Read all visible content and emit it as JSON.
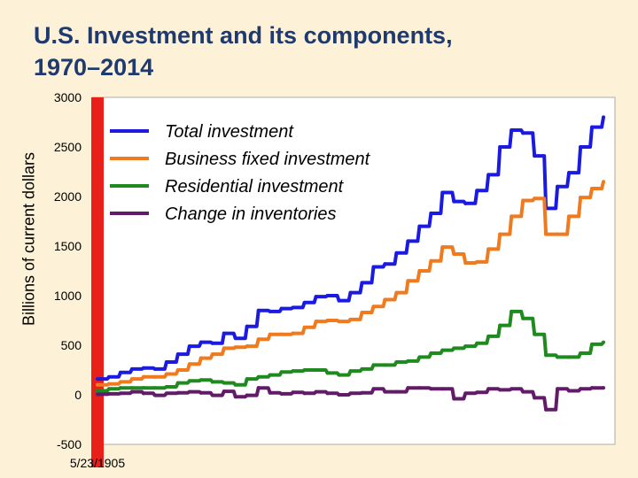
{
  "chart_data": {
    "type": "line",
    "title": "U.S. Investment and its components,",
    "subtitle": "1970–2014",
    "ylabel": "Billions of current dollars",
    "xlabel": "",
    "x_tick_labels": [
      "5/23/1905"
    ],
    "y_ticks": [
      -500,
      0,
      500,
      1000,
      1500,
      2000,
      2500,
      3000
    ],
    "ylim": [
      -500,
      3000
    ],
    "xlim": [
      1970,
      2015
    ],
    "legend_position": "top-right",
    "highlight_bar": {
      "at": 1970,
      "color": "#e8201a"
    },
    "series": [
      {
        "name": "Total investment",
        "color": "#1a1ae0",
        "x": [
          1970,
          1971,
          1972,
          1973,
          1974,
          1975,
          1976,
          1977,
          1978,
          1979,
          1980,
          1981,
          1982,
          1983,
          1984,
          1985,
          1986,
          1987,
          1988,
          1989,
          1990,
          1991,
          1992,
          1993,
          1994,
          1995,
          1996,
          1997,
          1998,
          1999,
          2000,
          2001,
          2002,
          2003,
          2004,
          2005,
          2006,
          2007,
          2008,
          2009,
          2010,
          2011,
          2012,
          2013,
          2014
        ],
        "values": [
          160,
          180,
          225,
          260,
          270,
          260,
          330,
          410,
          490,
          530,
          520,
          620,
          570,
          690,
          850,
          840,
          870,
          880,
          930,
          990,
          1000,
          950,
          1030,
          1130,
          1290,
          1320,
          1430,
          1550,
          1700,
          1830,
          2040,
          1950,
          1930,
          2060,
          2220,
          2500,
          2670,
          2640,
          2410,
          1880,
          2100,
          2240,
          2500,
          2700,
          2800
        ]
      },
      {
        "name": "Business fixed investment",
        "color": "#f07a1e",
        "x": [
          1970,
          1971,
          1972,
          1973,
          1974,
          1975,
          1976,
          1977,
          1978,
          1979,
          1980,
          1981,
          1982,
          1983,
          1984,
          1985,
          1986,
          1987,
          1988,
          1989,
          1990,
          1991,
          1992,
          1993,
          1994,
          1995,
          1996,
          1997,
          1998,
          1999,
          2000,
          2001,
          2002,
          2003,
          2004,
          2005,
          2006,
          2007,
          2008,
          2009,
          2010,
          2011,
          2012,
          2013,
          2014
        ],
        "values": [
          100,
          110,
          130,
          160,
          180,
          180,
          210,
          250,
          310,
          370,
          410,
          470,
          480,
          490,
          560,
          610,
          610,
          620,
          680,
          740,
          750,
          740,
          760,
          830,
          890,
          960,
          1030,
          1150,
          1250,
          1350,
          1490,
          1420,
          1330,
          1340,
          1470,
          1620,
          1800,
          1960,
          1980,
          1620,
          1620,
          1800,
          1990,
          2080,
          2150
        ]
      },
      {
        "name": "Residential investment",
        "color": "#1f8a1f",
        "x": [
          1970,
          1971,
          1972,
          1973,
          1974,
          1975,
          1976,
          1977,
          1978,
          1979,
          1980,
          1981,
          1982,
          1983,
          1984,
          1985,
          1986,
          1987,
          1988,
          1989,
          1990,
          1991,
          1992,
          1993,
          1994,
          1995,
          1996,
          1997,
          1998,
          1999,
          2000,
          2001,
          2002,
          2003,
          2004,
          2005,
          2006,
          2007,
          2008,
          2009,
          2010,
          2011,
          2012,
          2013,
          2014
        ],
        "values": [
          40,
          60,
          70,
          70,
          70,
          70,
          80,
          120,
          140,
          150,
          130,
          120,
          100,
          160,
          180,
          200,
          230,
          240,
          250,
          250,
          220,
          200,
          240,
          260,
          300,
          300,
          330,
          340,
          380,
          420,
          450,
          470,
          490,
          520,
          590,
          700,
          840,
          770,
          610,
          400,
          380,
          380,
          420,
          510,
          530
        ]
      },
      {
        "name": "Change in inventories",
        "color": "#621b68",
        "x": [
          1970,
          1971,
          1972,
          1973,
          1974,
          1975,
          1976,
          1977,
          1978,
          1979,
          1980,
          1981,
          1982,
          1983,
          1984,
          1985,
          1986,
          1987,
          1988,
          1989,
          1990,
          1991,
          1992,
          1993,
          1994,
          1995,
          1996,
          1997,
          1998,
          1999,
          2000,
          2001,
          2002,
          2003,
          2004,
          2005,
          2006,
          2007,
          2008,
          2009,
          2010,
          2011,
          2012,
          2013,
          2014
        ],
        "values": [
          5,
          10,
          15,
          30,
          15,
          -5,
          15,
          20,
          30,
          20,
          -5,
          35,
          -20,
          -5,
          70,
          20,
          10,
          25,
          15,
          30,
          15,
          0,
          15,
          20,
          60,
          30,
          30,
          70,
          70,
          60,
          60,
          -40,
          15,
          25,
          60,
          50,
          60,
          30,
          -30,
          -150,
          60,
          40,
          60,
          70,
          70
        ]
      }
    ]
  }
}
